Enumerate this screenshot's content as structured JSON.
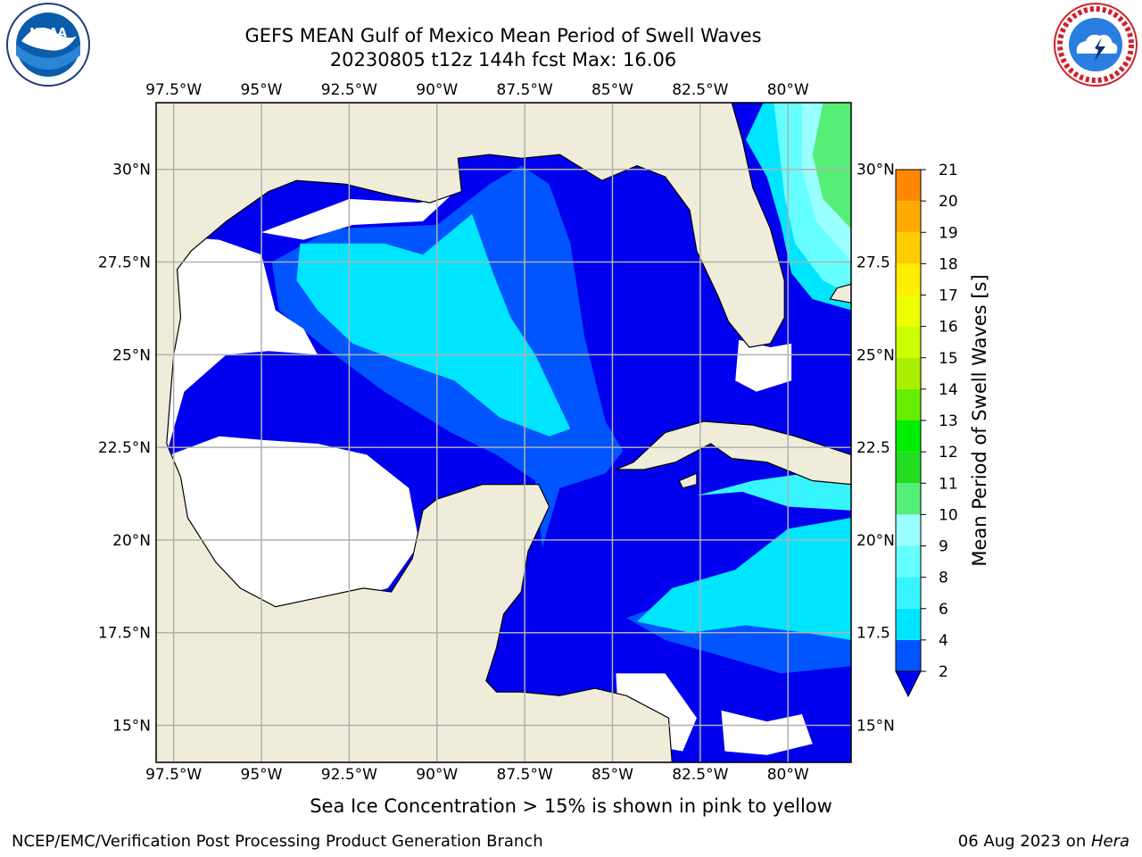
{
  "title": {
    "line1": "GEFS MEAN Gulf of Mexico Mean Period of Swell Waves",
    "line2": "20230805 t12z 144h fcst   Max: 16.06"
  },
  "map": {
    "lon_ticks": [
      "97.5°W",
      "95°W",
      "92.5°W",
      "90°W",
      "87.5°W",
      "85°W",
      "82.5°W",
      "80°W"
    ],
    "lat_ticks_left": [
      "30°N",
      "27.5°N",
      "25°N",
      "22.5°N",
      "20°N",
      "17.5°N",
      "15°N"
    ],
    "lat_ticks_right": [
      "30°N",
      "27.5",
      "25°N",
      "22.5",
      "20°N",
      "17.5",
      "15°N"
    ],
    "extent": {
      "lon_min": -98,
      "lon_max": -78.2,
      "lat_min": 14,
      "lat_max": 31.8
    },
    "colors": {
      "land": "#efedda",
      "grid": "#b0b0b0",
      "coast": "#000000"
    }
  },
  "colorbar": {
    "label": "Mean Period of Swell Waves [s]",
    "tick_labels": [
      "2",
      "4",
      "6",
      "8",
      "9",
      "10",
      "11",
      "12",
      "13",
      "14",
      "15",
      "16",
      "17",
      "18",
      "19",
      "20",
      "21"
    ],
    "colors": [
      "#0055ff",
      "#00e5ff",
      "#38f4ff",
      "#66ffff",
      "#99ffff",
      "#55ee77",
      "#22dd22",
      "#00ee00",
      "#66ee00",
      "#aaee00",
      "#ccff00",
      "#eeff00",
      "#ffee00",
      "#ffcc00",
      "#ffaa00",
      "#ff8800",
      "#ff4400",
      "#ff0000"
    ],
    "under_color": "#0000ee"
  },
  "subtitle": "Sea Ice Concentration > 15% is shown in pink to yellow",
  "footer": {
    "left": "NCEP/EMC/Verification Post Processing Product Generation Branch",
    "right_prefix": "06 Aug 2023 on ",
    "right_italic": "Hera"
  },
  "logos": {
    "left": "noaa-logo",
    "right": "nws-logo"
  }
}
